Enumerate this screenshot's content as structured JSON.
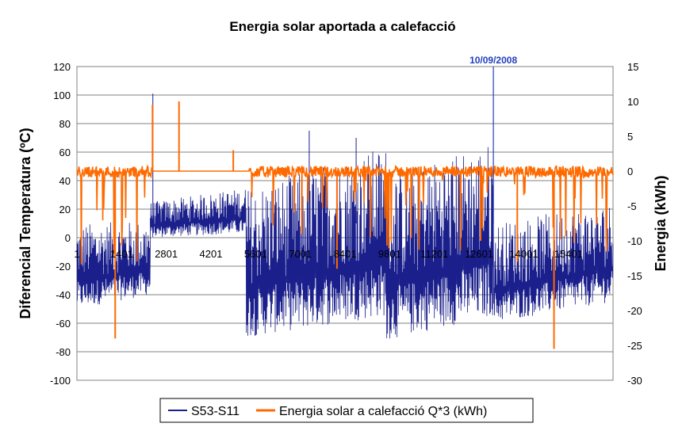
{
  "chart_data": {
    "type": "line",
    "title": "Energia solar aportada a calefacció",
    "ylabel_left": "Diferencial Temperatura (ºC)",
    "ylabel_right": "Energia (kWh)",
    "ylim_left": [
      -100,
      120
    ],
    "ylim_right": [
      -30,
      15
    ],
    "yticks_left": [
      120,
      100,
      80,
      60,
      40,
      20,
      0,
      -20,
      -40,
      -60,
      -80,
      -100
    ],
    "yticks_right": [
      15,
      10,
      5,
      0,
      -5,
      -10,
      -15,
      -20,
      -25,
      -30
    ],
    "x_tick_labels": [
      "1",
      "1401",
      "2801",
      "4201",
      "5601",
      "7001",
      "8401",
      "9801",
      "11201",
      "12601",
      "14001",
      "15401"
    ],
    "xlim": [
      1,
      16800
    ],
    "grid": "horizontal",
    "legend_position": "bottom",
    "annotation": {
      "text": "10/09/2008",
      "color": "#1f3fbf",
      "x": 13050
    },
    "series": [
      {
        "name": "S53-S11",
        "axis": "left",
        "color": "#1a1f8c",
        "segments": [
          {
            "x": [
              1,
              2300
            ],
            "low": [
              -50,
              -40
            ],
            "high": [
              10,
              12
            ]
          },
          {
            "x": [
              2300,
              5300
            ],
            "low": [
              0,
              3
            ],
            "high": [
              25,
              35
            ]
          },
          {
            "x": [
              5300,
              9700
            ],
            "low": [
              -70,
              -55
            ],
            "high": [
              35,
              65
            ]
          },
          {
            "x": [
              9700,
              13050
            ],
            "low": [
              -72,
              -55
            ],
            "high": [
              45,
              68
            ]
          },
          {
            "x": [
              13050,
              16800
            ],
            "low": [
              -60,
              -45
            ],
            "high": [
              10,
              25
            ]
          }
        ],
        "spikes": [
          {
            "x": 2380,
            "value": 101
          },
          {
            "x": 13050,
            "value": 120
          },
          {
            "x": 7280,
            "value": 75
          },
          {
            "x": 8750,
            "value": 70
          }
        ]
      },
      {
        "name": "Energia solar a calefacció Q*3 (kWh)",
        "axis": "right",
        "color": "#ff6a00",
        "baseline": 0,
        "spikes": [
          {
            "x": 1200,
            "value": -24
          },
          {
            "x": 2370,
            "value": 9.5
          },
          {
            "x": 3200,
            "value": 10
          },
          {
            "x": 4900,
            "value": 3
          },
          {
            "x": 8150,
            "value": -14
          },
          {
            "x": 14950,
            "value": -25.5
          },
          {
            "x": 7050,
            "value": -9
          },
          {
            "x": 12650,
            "value": -10
          },
          {
            "x": 13800,
            "value": -13
          }
        ]
      }
    ]
  }
}
